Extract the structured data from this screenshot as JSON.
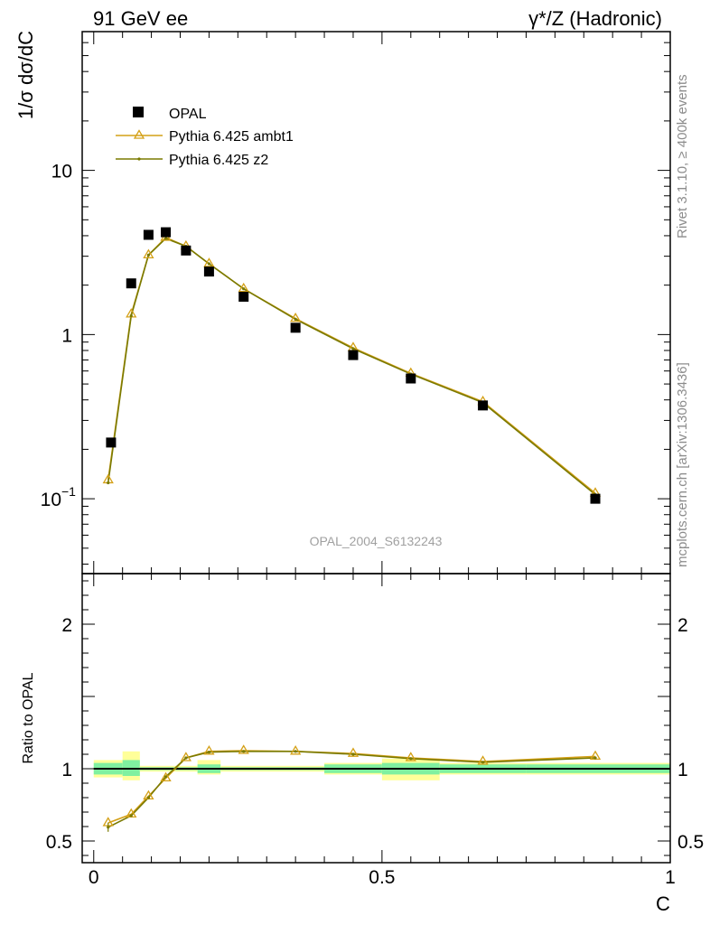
{
  "header": {
    "left": "91 GeV ee",
    "right": "γ*/Z (Hadronic)"
  },
  "side_labels": {
    "rivet": "Rivet 3.1.10, ≥ 400k events",
    "mcplots": "mcplots.cern.ch [arXiv:1306.3436]"
  },
  "watermark": "OPAL_2004_S6132243",
  "colors": {
    "data": "#000000",
    "ambt1": "#d4a017",
    "z2": "#7a7a00",
    "band_yellow": "#ffff99",
    "band_green": "#80f0a0"
  },
  "chart_data": [
    {
      "type": "scatter",
      "panel": "main",
      "ylabel": "1/σ dσ/dC",
      "yscale": "log",
      "ylim": [
        0.035,
        70
      ],
      "xlim": [
        -0.02,
        1.0
      ],
      "yticks": [
        {
          "value": 0.1,
          "label": "10",
          "exp": "−1"
        },
        {
          "value": 1,
          "label": "1",
          "exp": ""
        },
        {
          "value": 10,
          "label": "10",
          "exp": ""
        }
      ],
      "legend_position": "top-left",
      "series": [
        {
          "name": "OPAL",
          "x": [
            0.03,
            0.065,
            0.095,
            0.125,
            0.16,
            0.2,
            0.26,
            0.35,
            0.45,
            0.55,
            0.675,
            0.87
          ],
          "y": [
            0.22,
            2.05,
            4.05,
            4.2,
            3.25,
            2.42,
            1.7,
            1.1,
            0.75,
            0.54,
            0.37,
            0.1
          ]
        },
        {
          "name": "Pythia 6.425 ambt1",
          "x": [
            0.025,
            0.065,
            0.095,
            0.125,
            0.16,
            0.2,
            0.26,
            0.35,
            0.45,
            0.55,
            0.675,
            0.87
          ],
          "y": [
            0.13,
            1.33,
            3.05,
            3.9,
            3.45,
            2.7,
            1.9,
            1.25,
            0.83,
            0.58,
            0.39,
            0.108
          ]
        },
        {
          "name": "Pythia 6.425 z2",
          "x": [
            0.025,
            0.065,
            0.095,
            0.125,
            0.16,
            0.2,
            0.26,
            0.35,
            0.45,
            0.55,
            0.675,
            0.87
          ],
          "y": [
            0.125,
            1.3,
            3.05,
            3.85,
            3.45,
            2.7,
            1.9,
            1.24,
            0.82,
            0.575,
            0.385,
            0.106
          ]
        }
      ]
    },
    {
      "type": "line",
      "panel": "ratio",
      "ylabel": "Ratio to OPAL",
      "xlabel": "C",
      "ylim": [
        0.35,
        2.35
      ],
      "xlim": [
        -0.02,
        1.0
      ],
      "yticks": [
        0.5,
        1,
        2
      ],
      "xticks": [
        {
          "value": 0,
          "label": "0"
        },
        {
          "value": 0.5,
          "label": "0.5"
        },
        {
          "value": 1,
          "label": "1"
        }
      ],
      "bands": [
        {
          "x0": 0.0,
          "x1": 0.05,
          "yellow": [
            0.94,
            1.06
          ],
          "green": [
            0.96,
            1.04
          ]
        },
        {
          "x0": 0.05,
          "x1": 0.08,
          "yellow": [
            0.92,
            1.12
          ],
          "green": [
            0.95,
            1.06
          ]
        },
        {
          "x0": 0.08,
          "x1": 0.18,
          "yellow": [
            0.98,
            1.02
          ],
          "green": [
            0.99,
            1.01
          ]
        },
        {
          "x0": 0.18,
          "x1": 0.22,
          "yellow": [
            0.96,
            1.06
          ],
          "green": [
            0.97,
            1.03
          ]
        },
        {
          "x0": 0.22,
          "x1": 0.4,
          "yellow": [
            0.98,
            1.02
          ],
          "green": [
            0.99,
            1.01
          ]
        },
        {
          "x0": 0.4,
          "x1": 0.5,
          "yellow": [
            0.96,
            1.04
          ],
          "green": [
            0.97,
            1.03
          ]
        },
        {
          "x0": 0.5,
          "x1": 0.6,
          "yellow": [
            0.92,
            1.07
          ],
          "green": [
            0.96,
            1.04
          ]
        },
        {
          "x0": 0.6,
          "x1": 0.75,
          "yellow": [
            0.96,
            1.04
          ],
          "green": [
            0.97,
            1.03
          ]
        },
        {
          "x0": 0.75,
          "x1": 1.0,
          "yellow": [
            0.96,
            1.04
          ],
          "green": [
            0.97,
            1.03
          ]
        }
      ],
      "series": [
        {
          "name": "Pythia 6.425 ambt1",
          "x": [
            0.025,
            0.065,
            0.095,
            0.125,
            0.16,
            0.2,
            0.26,
            0.35,
            0.45,
            0.55,
            0.675,
            0.87
          ],
          "y": [
            0.625,
            0.685,
            0.81,
            0.935,
            1.075,
            1.12,
            1.125,
            1.12,
            1.105,
            1.075,
            1.05,
            1.085
          ]
        },
        {
          "name": "Pythia 6.425 z2",
          "x": [
            0.025,
            0.065,
            0.095,
            0.125,
            0.16,
            0.2,
            0.26,
            0.35,
            0.45,
            0.55,
            0.675,
            0.87
          ],
          "y": [
            0.595,
            0.675,
            0.8,
            0.945,
            1.075,
            1.115,
            1.12,
            1.12,
            1.1,
            1.07,
            1.045,
            1.075
          ]
        }
      ]
    }
  ]
}
